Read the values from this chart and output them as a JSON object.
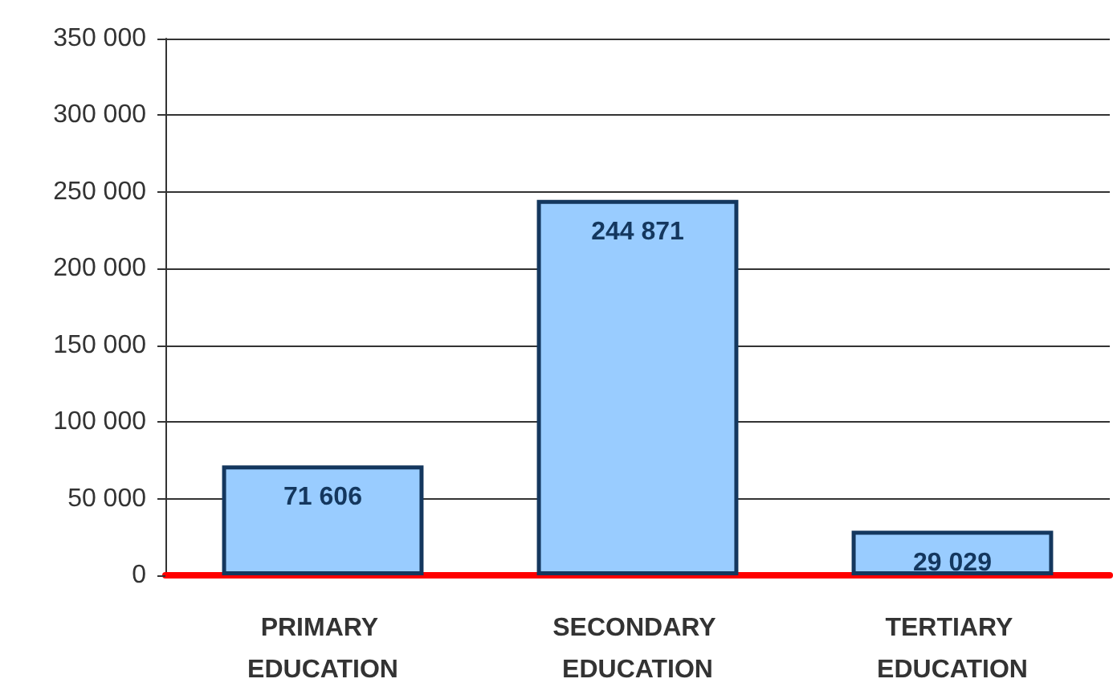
{
  "chart_data": {
    "type": "bar",
    "categories": [
      "PRIMARY EDUCATION",
      "SECONDARY EDUCATION",
      "TERTIARY EDUCATION"
    ],
    "values": [
      71606,
      244871,
      29029
    ],
    "value_labels": [
      "71 606",
      "244 871",
      "29 029"
    ],
    "color": "#99ccff",
    "ylim": [
      0,
      350000
    ],
    "yticks": [
      {
        "value": 0,
        "label": "0"
      },
      {
        "value": 50000,
        "label": "50 000"
      },
      {
        "value": 100000,
        "label": "100 000"
      },
      {
        "value": 150000,
        "label": "150 000"
      },
      {
        "value": 200000,
        "label": "200 000"
      },
      {
        "value": 250000,
        "label": "250 000"
      },
      {
        "value": 300000,
        "label": "300 000"
      },
      {
        "value": 350000,
        "label": "350 000"
      }
    ],
    "grid": "y"
  }
}
